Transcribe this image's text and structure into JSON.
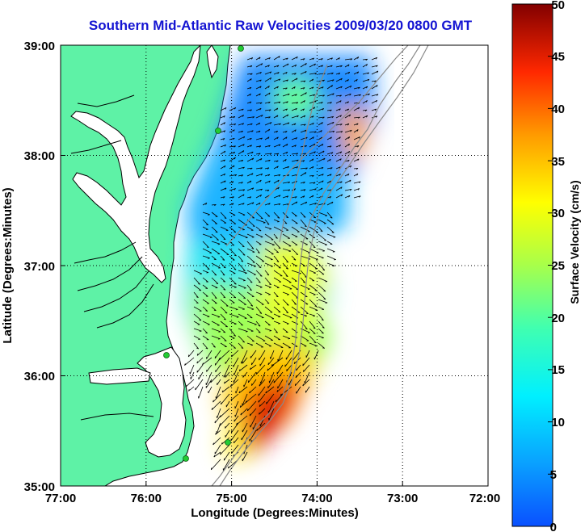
{
  "title": "Southern Mid-Atlantic Raw Velocities 2009/03/20 0800 GMT",
  "x_axis": {
    "label": "Longitude (Degrees:Minutes)",
    "ticks": [
      "77:00",
      "76:00",
      "75:00",
      "74:00",
      "73:00",
      "72:00"
    ],
    "range": [
      -77,
      -72
    ]
  },
  "y_axis": {
    "label": "Latitude (Degrees:Minutes)",
    "ticks": [
      "35:00",
      "36:00",
      "37:00",
      "38:00",
      "39:00"
    ],
    "range": [
      35,
      39
    ]
  },
  "colorbar": {
    "label": "Surface Velocity (cm/s)",
    "ticks": [
      "0",
      "5",
      "10",
      "15",
      "20",
      "25",
      "30",
      "35",
      "40",
      "45",
      "50"
    ],
    "range": [
      0,
      50
    ],
    "colormap": "jet"
  },
  "colors": {
    "title": "#1414d2",
    "land": "#5ef2a6",
    "stations": "#22cc33",
    "background": "#ffffff"
  },
  "map_features": {
    "gridlines": "dotted",
    "coastline": true,
    "bathymetry_contours": true,
    "velocity_vectors": true
  }
}
